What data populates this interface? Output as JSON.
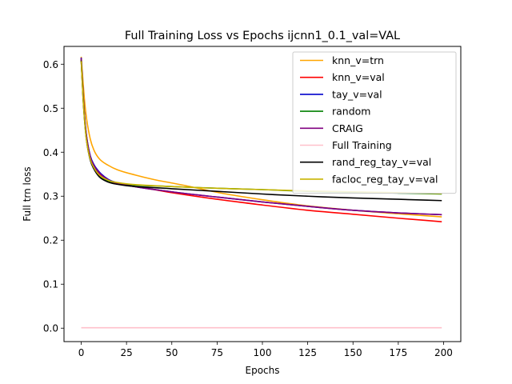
{
  "chart_data": {
    "type": "line",
    "title": "Full Training Loss vs Epochs ijcnn1_0.1_val=VAL",
    "xlabel": "Epochs",
    "ylabel": "Full trn loss",
    "xlim": [
      -9.5,
      209.5
    ],
    "ylim": [
      -0.0305,
      0.6405
    ],
    "xticks": [
      0,
      25,
      50,
      75,
      100,
      125,
      150,
      175,
      200
    ],
    "xtick_labels": [
      "0",
      "25",
      "50",
      "75",
      "100",
      "125",
      "150",
      "175",
      "200"
    ],
    "yticks": [
      0.0,
      0.1,
      0.2,
      0.3,
      0.4,
      0.5,
      0.6
    ],
    "ytick_labels": [
      "0.0",
      "0.1",
      "0.2",
      "0.3",
      "0.4",
      "0.5",
      "0.6"
    ],
    "grid": false,
    "legend_position": "top-right",
    "series": [
      {
        "name": "knn_v=trn",
        "color": "#ffa500",
        "x": [
          0,
          1,
          2,
          3,
          5,
          7,
          10,
          15,
          20,
          30,
          40,
          50,
          60,
          70,
          80,
          100,
          125,
          150,
          175,
          199
        ],
        "y": [
          0.617,
          0.56,
          0.51,
          0.475,
          0.43,
          0.405,
          0.385,
          0.37,
          0.36,
          0.348,
          0.338,
          0.33,
          0.322,
          0.313,
          0.305,
          0.292,
          0.278,
          0.268,
          0.26,
          0.253
        ]
      },
      {
        "name": "knn_v=val",
        "color": "#ff0000",
        "x": [
          0,
          1,
          2,
          3,
          5,
          7,
          10,
          15,
          20,
          25,
          40,
          50,
          75,
          100,
          125,
          150,
          175,
          199
        ],
        "y": [
          0.61,
          0.53,
          0.47,
          0.43,
          0.39,
          0.37,
          0.352,
          0.337,
          0.33,
          0.325,
          0.315,
          0.308,
          0.293,
          0.28,
          0.268,
          0.259,
          0.25,
          0.242
        ]
      },
      {
        "name": "tay_v=val",
        "color": "#0000cc",
        "x": [
          0,
          1,
          2,
          3,
          5,
          7,
          10,
          15,
          20,
          25,
          50,
          75,
          100,
          125,
          150,
          175,
          199
        ],
        "y": [
          0.615,
          0.535,
          0.475,
          0.435,
          0.392,
          0.372,
          0.355,
          0.338,
          0.33,
          0.325,
          0.31,
          0.298,
          0.287,
          0.277,
          0.268,
          0.262,
          0.258
        ]
      },
      {
        "name": "random",
        "color": "#008000",
        "x": [
          0,
          1,
          2,
          3,
          5,
          7,
          10,
          15,
          20,
          25,
          50,
          75,
          100,
          125,
          150,
          175,
          199
        ],
        "y": [
          0.612,
          0.53,
          0.47,
          0.43,
          0.385,
          0.365,
          0.347,
          0.335,
          0.33,
          0.327,
          0.322,
          0.318,
          0.315,
          0.311,
          0.309,
          0.307,
          0.305
        ]
      },
      {
        "name": "CRAIG",
        "color": "#800080",
        "x": [
          0,
          1,
          2,
          3,
          5,
          7,
          10,
          15,
          20,
          25,
          50,
          75,
          100,
          125,
          150,
          175,
          199
        ],
        "y": [
          0.614,
          0.535,
          0.475,
          0.435,
          0.39,
          0.37,
          0.353,
          0.337,
          0.329,
          0.325,
          0.31,
          0.298,
          0.287,
          0.277,
          0.268,
          0.262,
          0.258
        ]
      },
      {
        "name": "Full Training",
        "color": "#ffc0cb",
        "x": [
          0,
          199
        ],
        "y": [
          0.001,
          0.001
        ]
      },
      {
        "name": "rand_reg_tay_v=val",
        "color": "#000000",
        "x": [
          0,
          1,
          2,
          3,
          5,
          7,
          10,
          15,
          20,
          25,
          50,
          75,
          100,
          125,
          150,
          175,
          199
        ],
        "y": [
          0.608,
          0.525,
          0.465,
          0.425,
          0.382,
          0.362,
          0.344,
          0.332,
          0.327,
          0.324,
          0.317,
          0.311,
          0.305,
          0.3,
          0.296,
          0.293,
          0.29
        ]
      },
      {
        "name": "facloc_reg_tay_v=val",
        "color": "#c8b400",
        "x": [
          0,
          1,
          2,
          3,
          5,
          7,
          10,
          15,
          20,
          25,
          50,
          75,
          100,
          125,
          150,
          175,
          199
        ],
        "y": [
          0.607,
          0.525,
          0.465,
          0.425,
          0.384,
          0.365,
          0.348,
          0.336,
          0.331,
          0.328,
          0.322,
          0.318,
          0.315,
          0.312,
          0.31,
          0.308,
          0.306
        ]
      }
    ]
  }
}
